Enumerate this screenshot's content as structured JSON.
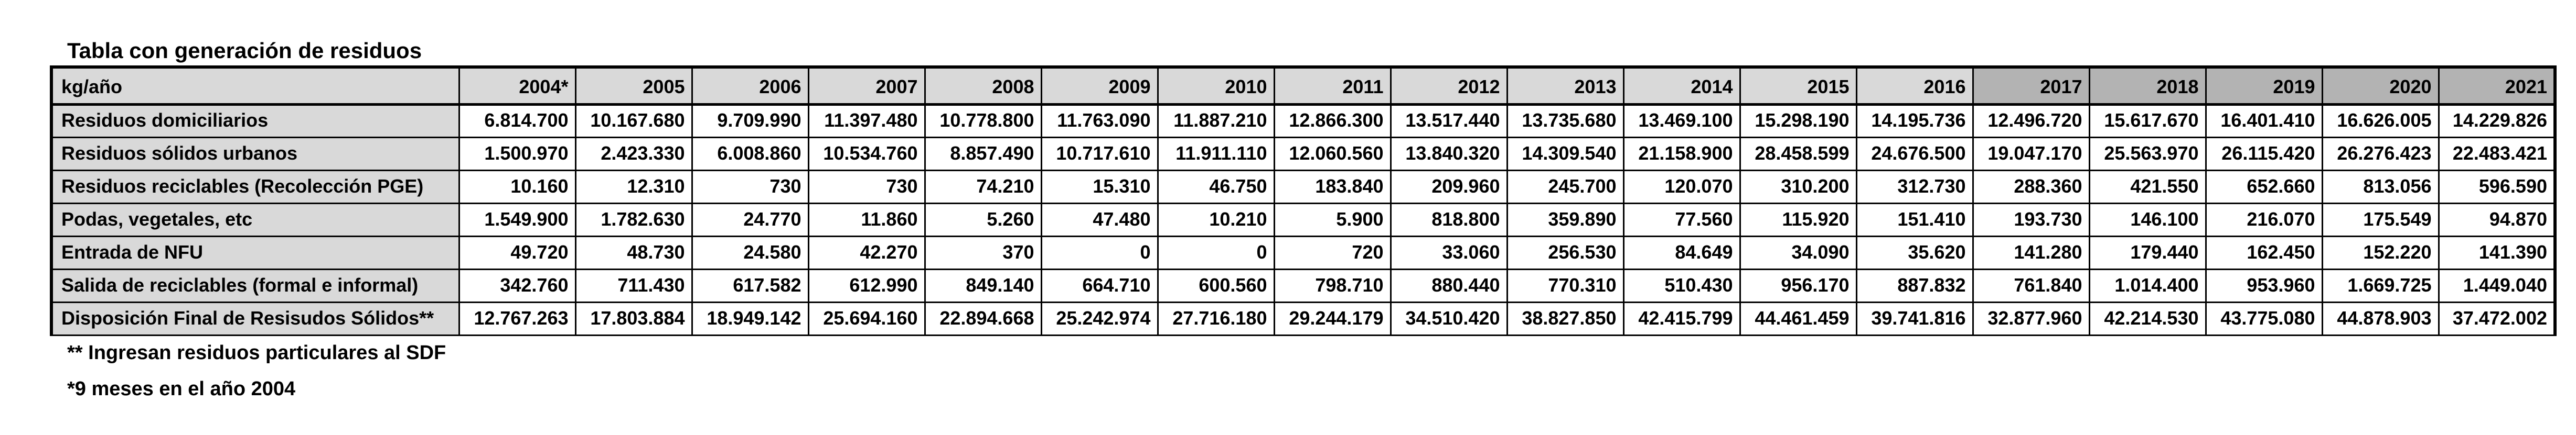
{
  "title": "Tabla con generación de residuos",
  "footnotes": {
    "sdf": "** Ingresan residuos particulares al SDF",
    "months": "*9 meses en el año 2004"
  },
  "colors": {
    "header_fill": "#d9d9d9",
    "recent_header_fill": "#b3b3b3",
    "border": "#000000",
    "cell_fill": "#ffffff"
  },
  "chart_data": {
    "type": "table",
    "corner_label": "kg/año",
    "columns": [
      "2004*",
      "2005",
      "2006",
      "2007",
      "2008",
      "2009",
      "2010",
      "2011",
      "2012",
      "2013",
      "2014",
      "2015",
      "2016",
      "2017",
      "2018",
      "2019",
      "2020",
      "2021"
    ],
    "recent_columns_start": "2017",
    "rows": [
      {
        "label": "Residuos domiciliarios",
        "values": [
          "6.814.700",
          "10.167.680",
          "9.709.990",
          "11.397.480",
          "10.778.800",
          "11.763.090",
          "11.887.210",
          "12.866.300",
          "13.517.440",
          "13.735.680",
          "13.469.100",
          "15.298.190",
          "14.195.736",
          "12.496.720",
          "15.617.670",
          "16.401.410",
          "16.626.005",
          "14.229.826"
        ]
      },
      {
        "label": "Residuos sólidos urbanos",
        "values": [
          "1.500.970",
          "2.423.330",
          "6.008.860",
          "10.534.760",
          "8.857.490",
          "10.717.610",
          "11.911.110",
          "12.060.560",
          "13.840.320",
          "14.309.540",
          "21.158.900",
          "28.458.599",
          "24.676.500",
          "19.047.170",
          "25.563.970",
          "26.115.420",
          "26.276.423",
          "22.483.421"
        ]
      },
      {
        "label": "Residuos reciclables (Recolección PGE)",
        "values": [
          "10.160",
          "12.310",
          "730",
          "730",
          "74.210",
          "15.310",
          "46.750",
          "183.840",
          "209.960",
          "245.700",
          "120.070",
          "310.200",
          "312.730",
          "288.360",
          "421.550",
          "652.660",
          "813.056",
          "596.590"
        ]
      },
      {
        "label": "Podas, vegetales, etc",
        "values": [
          "1.549.900",
          "1.782.630",
          "24.770",
          "11.860",
          "5.260",
          "47.480",
          "10.210",
          "5.900",
          "818.800",
          "359.890",
          "77.560",
          "115.920",
          "151.410",
          "193.730",
          "146.100",
          "216.070",
          "175.549",
          "94.870"
        ]
      },
      {
        "label": "Entrada de NFU",
        "values": [
          "49.720",
          "48.730",
          "24.580",
          "42.270",
          "370",
          "0",
          "0",
          "720",
          "33.060",
          "256.530",
          "84.649",
          "34.090",
          "35.620",
          "141.280",
          "179.440",
          "162.450",
          "152.220",
          "141.390"
        ]
      },
      {
        "label": "Salida de reciclables (formal e informal)",
        "values": [
          "342.760",
          "711.430",
          "617.582",
          "612.990",
          "849.140",
          "664.710",
          "600.560",
          "798.710",
          "880.440",
          "770.310",
          "510.430",
          "956.170",
          "887.832",
          "761.840",
          "1.014.400",
          "953.960",
          "1.669.725",
          "1.449.040"
        ]
      },
      {
        "label": "Disposición Final de Resisudos Sólidos**",
        "values": [
          "12.767.263",
          "17.803.884",
          "18.949.142",
          "25.694.160",
          "22.894.668",
          "25.242.974",
          "27.716.180",
          "29.244.179",
          "34.510.420",
          "38.827.850",
          "42.415.799",
          "44.461.459",
          "39.741.816",
          "32.877.960",
          "42.214.530",
          "43.775.080",
          "44.878.903",
          "37.472.002"
        ]
      }
    ]
  }
}
